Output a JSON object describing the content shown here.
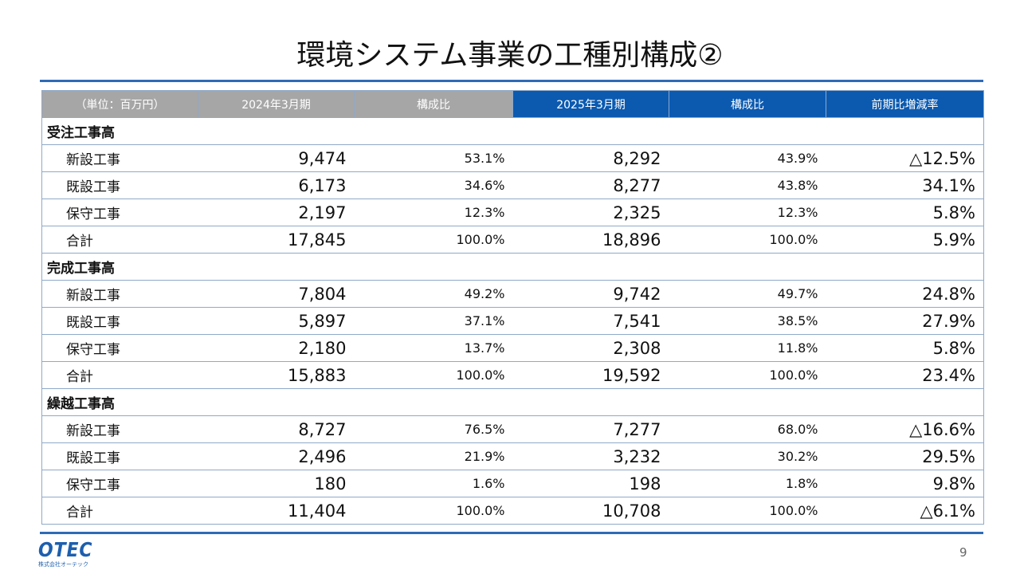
{
  "title": "環境システム事業の工種別構成②",
  "table": {
    "headers": [
      "（単位：百万円）",
      "2024年3月期",
      "構成比",
      "2025年3月期",
      "構成比",
      "前期比増減率"
    ],
    "sections": [
      {
        "name": "受注工事高",
        "rows": [
          {
            "label": "新設工事",
            "v2024": "9,474",
            "r2024": "53.1%",
            "v2025": "8,292",
            "r2025": "43.9%",
            "change": "△12.5%"
          },
          {
            "label": "既設工事",
            "v2024": "6,173",
            "r2024": "34.6%",
            "v2025": "8,277",
            "r2025": "43.8%",
            "change": "34.1%"
          },
          {
            "label": "保守工事",
            "v2024": "2,197",
            "r2024": "12.3%",
            "v2025": "2,325",
            "r2025": "12.3%",
            "change": "5.8%"
          },
          {
            "label": "合計",
            "v2024": "17,845",
            "r2024": "100.0%",
            "v2025": "18,896",
            "r2025": "100.0%",
            "change": "5.9%"
          }
        ]
      },
      {
        "name": "完成工事高",
        "rows": [
          {
            "label": "新設工事",
            "v2024": "7,804",
            "r2024": "49.2%",
            "v2025": "9,742",
            "r2025": "49.7%",
            "change": "24.8%"
          },
          {
            "label": "既設工事",
            "v2024": "5,897",
            "r2024": "37.1%",
            "v2025": "7,541",
            "r2025": "38.5%",
            "change": "27.9%"
          },
          {
            "label": "保守工事",
            "v2024": "2,180",
            "r2024": "13.7%",
            "v2025": "2,308",
            "r2025": "11.8%",
            "change": "5.8%"
          },
          {
            "label": "合計",
            "v2024": "15,883",
            "r2024": "100.0%",
            "v2025": "19,592",
            "r2025": "100.0%",
            "change": "23.4%"
          }
        ]
      },
      {
        "name": "繰越工事高",
        "rows": [
          {
            "label": "新設工事",
            "v2024": "8,727",
            "r2024": "76.5%",
            "v2025": "7,277",
            "r2025": "68.0%",
            "change": "△16.6%"
          },
          {
            "label": "既設工事",
            "v2024": "2,496",
            "r2024": "21.9%",
            "v2025": "3,232",
            "r2025": "30.2%",
            "change": "29.5%"
          },
          {
            "label": "保守工事",
            "v2024": "180",
            "r2024": "1.6%",
            "v2025": "198",
            "r2025": "1.8%",
            "change": "9.8%"
          },
          {
            "label": "合計",
            "v2024": "11,404",
            "r2024": "100.0%",
            "v2025": "10,708",
            "r2025": "100.0%",
            "change": "△6.1%"
          }
        ]
      }
    ]
  },
  "footer": {
    "logo_text": "OTEC",
    "logo_subtext": "株式会社オーテック",
    "page_number": "9"
  },
  "colors": {
    "accent_blue": "#0b5ab0",
    "header_gray": "#a6a6a6",
    "rule_blue": "#2e6bb6"
  }
}
